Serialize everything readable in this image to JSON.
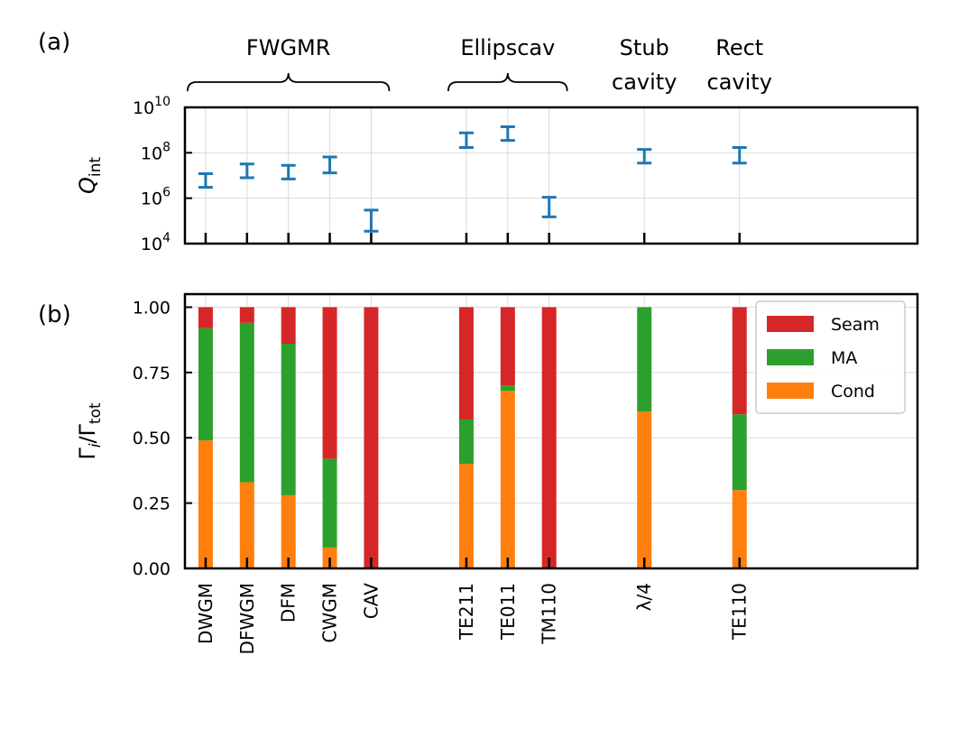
{
  "panel_labels": {
    "a": "(a)",
    "b": "(b)"
  },
  "groups": [
    {
      "label": "FWGMR",
      "lines": [
        "FWGMR"
      ],
      "span": [
        0,
        4
      ],
      "brace": true
    },
    {
      "label": "Ellipscav",
      "lines": [
        "Ellipscav"
      ],
      "span": [
        5,
        7
      ],
      "brace": true
    },
    {
      "label": "Stub cavity",
      "lines": [
        "Stub",
        "cavity"
      ],
      "span": [
        8,
        8
      ],
      "brace": false
    },
    {
      "label": "Rect cavity",
      "lines": [
        "Rect",
        "cavity"
      ],
      "span": [
        9,
        9
      ],
      "brace": false
    }
  ],
  "colors": {
    "errorbar": "#1f77b4",
    "Seam": "#d62728",
    "MA": "#2ca02c",
    "Cond": "#ff7f0e",
    "grid": "#d9d9d9",
    "axes": "#000000"
  },
  "chart_data": [
    {
      "id": "a",
      "type": "errorbar",
      "yscale": "log",
      "ylim": [
        10000,
        10000000000
      ],
      "ylabel": "Q_int",
      "yticks": [
        {
          "value": 10000,
          "base": "10",
          "exp": "4"
        },
        {
          "value": 1000000,
          "base": "10",
          "exp": "6"
        },
        {
          "value": 100000000,
          "base": "10",
          "exp": "8"
        },
        {
          "value": 10000000000,
          "base": "10",
          "exp": "10"
        }
      ],
      "categories": [
        "DWGM",
        "DFWGM",
        "DFM",
        "CWGM",
        "CAV",
        "TE211",
        "TE011",
        "TM110",
        "λ/4",
        "TE110"
      ],
      "x_positions": [
        0,
        1,
        2,
        3,
        4,
        6.3,
        7.3,
        8.3,
        10.6,
        12.9
      ],
      "xlim": [
        -0.5,
        17.2
      ],
      "center": [
        6000000,
        16000000,
        14000000,
        28000000,
        90000,
        350000000,
        700000000,
        400000,
        70000000,
        80000000
      ],
      "low": [
        3000000,
        8000000,
        7000000,
        13000000,
        35000,
        170000000,
        350000000,
        150000,
        35000000,
        35000000
      ],
      "high": [
        12000000,
        32000000,
        28000000,
        65000000,
        300000,
        750000000,
        1400000000,
        1100000,
        140000000,
        170000000
      ],
      "grid": true
    },
    {
      "id": "b",
      "type": "stacked-bar",
      "ylim": [
        0,
        1.05
      ],
      "ylabel": "Γ_i/Γ_tot",
      "yticks": [
        "0.00",
        "0.25",
        "0.50",
        "0.75",
        "1.00"
      ],
      "categories": [
        "DWGM",
        "DFWGM",
        "DFM",
        "CWGM",
        "CAV",
        "TE211",
        "TE011",
        "TM110",
        "λ/4",
        "TE110"
      ],
      "x_positions": [
        0,
        1,
        2,
        3,
        4,
        6.3,
        7.3,
        8.3,
        10.6,
        12.9
      ],
      "xlim": [
        -0.5,
        17.2
      ],
      "series": [
        {
          "name": "Cond",
          "values": [
            0.49,
            0.33,
            0.28,
            0.08,
            0.0,
            0.4,
            0.68,
            0.0,
            0.6,
            0.3
          ]
        },
        {
          "name": "MA",
          "values": [
            0.43,
            0.61,
            0.58,
            0.34,
            0.0,
            0.17,
            0.02,
            0.0,
            0.4,
            0.29
          ]
        },
        {
          "name": "Seam",
          "values": [
            0.08,
            0.06,
            0.14,
            0.58,
            1.0,
            0.43,
            0.3,
            1.0,
            0.0,
            0.41
          ]
        }
      ],
      "legend": {
        "position": "top-right",
        "order": [
          "Seam",
          "MA",
          "Cond"
        ]
      },
      "grid": true
    }
  ]
}
